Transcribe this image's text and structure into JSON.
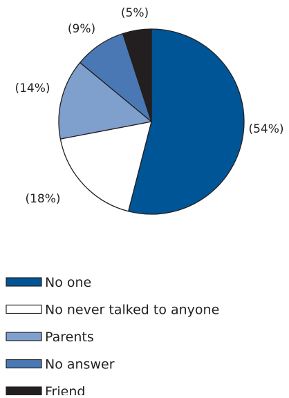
{
  "chart_data": {
    "type": "pie",
    "title": "",
    "slices": [
      {
        "label": "No one",
        "value": 54,
        "display": "(54%)",
        "color": "#005596"
      },
      {
        "label": "No never talked to anyone",
        "value": 18,
        "display": "(18%)",
        "color": "#ffffff"
      },
      {
        "label": "Parents",
        "value": 14,
        "display": "(14%)",
        "color": "#7f9fcd"
      },
      {
        "label": "No answer",
        "value": 9,
        "display": "(9%)",
        "color": "#4a78b4"
      },
      {
        "label": "Friend",
        "value": 5,
        "display": "(5%)",
        "color": "#231f20"
      }
    ],
    "start_angle_deg": 0,
    "direction": "clockwise",
    "outline_color": "#231f20",
    "legend_position": "bottom-left"
  }
}
